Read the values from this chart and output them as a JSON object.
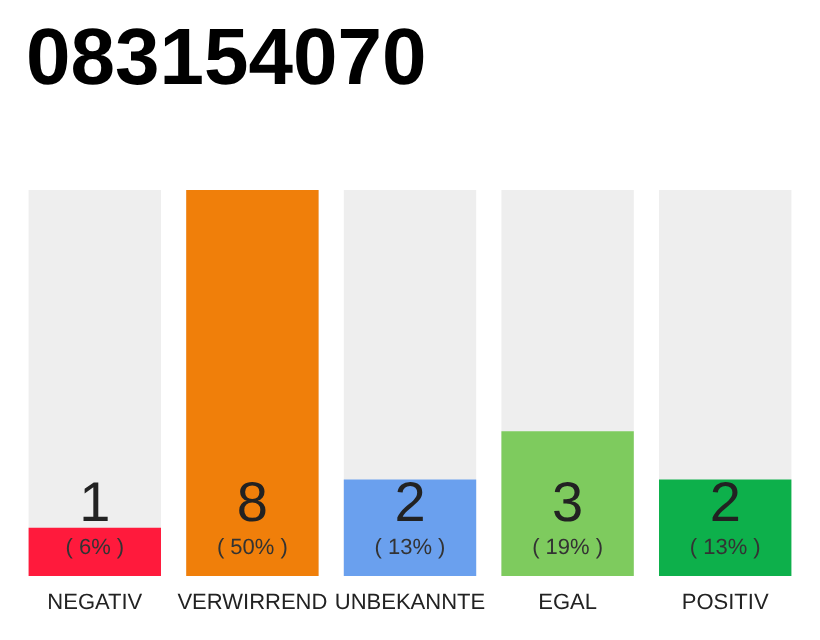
{
  "chart_data": {
    "type": "bar",
    "title": "083154070",
    "categories": [
      "NEGATIV",
      "VERWIRREND",
      "UNBEKANNTE",
      "EGAL",
      "POSITIV"
    ],
    "values": [
      1,
      8,
      2,
      3,
      2
    ],
    "colors": [
      "#ff1a3c",
      "#f07f0a",
      "#6aa0ee",
      "#7ecb5e",
      "#0db04b"
    ],
    "value_labels": [
      "1\n( 6% )",
      "8\n( 50% )",
      "2\n( 13% )",
      "3\n( 19% )",
      "2\n( 13% )"
    ]
  }
}
